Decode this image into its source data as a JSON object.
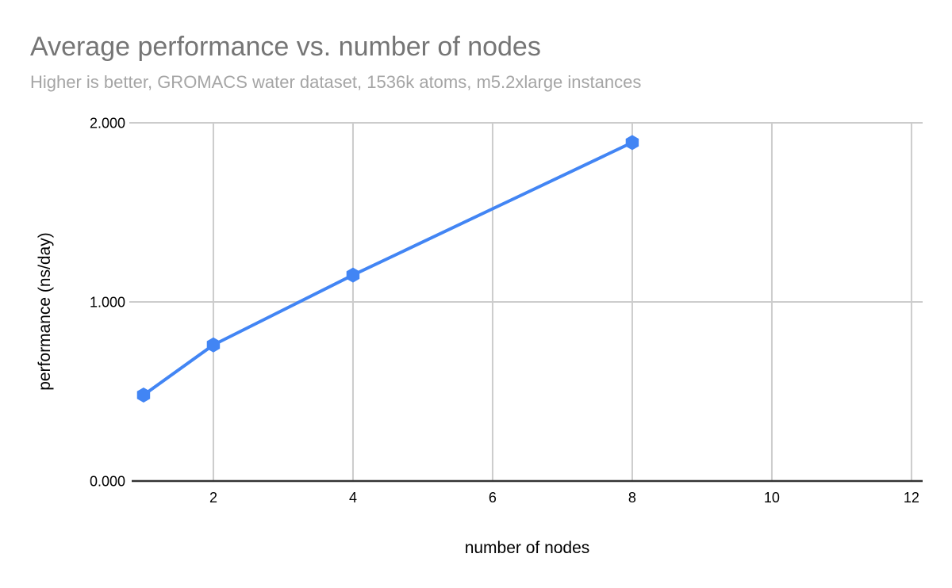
{
  "chart_data": {
    "type": "line",
    "title": "Average performance vs. number of nodes",
    "subtitle": "Higher is better, GROMACS water dataset, 1536k atoms, m5.2xlarge instances",
    "xlabel": "number of nodes",
    "ylabel": "performance (ns/day)",
    "x": [
      1,
      2,
      4,
      8
    ],
    "values": [
      0.48,
      0.76,
      1.15,
      1.89
    ],
    "x_ticks": [
      "2",
      "4",
      "6",
      "8",
      "10",
      "12"
    ],
    "x_tick_values": [
      2,
      4,
      6,
      8,
      10,
      12
    ],
    "y_ticks": [
      "0.000",
      "1.000",
      "2.000"
    ],
    "y_tick_values": [
      0,
      1,
      2
    ],
    "xlim": [
      0.83,
      12.16
    ],
    "ylim": [
      0,
      2
    ],
    "grid": true,
    "legend": "none",
    "marker": "hexagon",
    "colors": {
      "series": "#4285f4",
      "gridline": "#cccccc",
      "axis_line": "#333333",
      "tick_label": "#000000",
      "title": "#757575",
      "subtitle": "#a5a5a5"
    }
  }
}
